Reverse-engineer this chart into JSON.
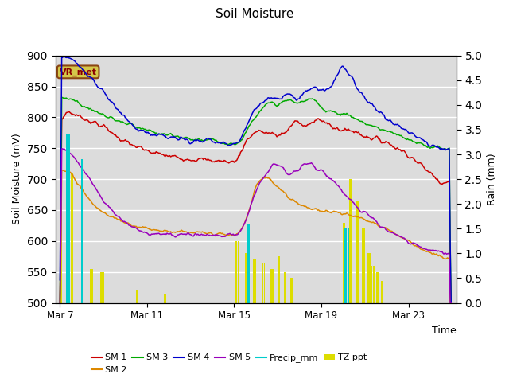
{
  "title": "Soil Moisture",
  "xlabel": "Time",
  "ylabel_left": "Soil Moisture (mV)",
  "ylabel_right": "Rain (mm)",
  "ylim_left": [
    500,
    900
  ],
  "ylim_right": [
    0.0,
    5.0
  ],
  "yticks_left": [
    500,
    550,
    600,
    650,
    700,
    750,
    800,
    850,
    900
  ],
  "yticks_right": [
    0.0,
    0.5,
    1.0,
    1.5,
    2.0,
    2.5,
    3.0,
    3.5,
    4.0,
    4.5,
    5.0
  ],
  "xtick_labels": [
    "Mar 7",
    "Mar 11",
    "Mar 15",
    "Mar 19",
    "Mar 23"
  ],
  "xtick_positions": [
    0,
    96,
    192,
    288,
    384
  ],
  "total_days": 18,
  "pts_per_day": 24,
  "bg_color": "#dcdcdc",
  "grid_color": "#ffffff",
  "colors": {
    "SM1": "#cc0000",
    "SM2": "#dd8800",
    "SM3": "#00aa00",
    "SM4": "#0000cc",
    "SM5": "#9900bb",
    "Precip_mm": "#00cccc",
    "TZ_ppt": "#dddd00"
  },
  "annotation_text": "VR_met",
  "legend_order": [
    "SM 1",
    "SM 2",
    "SM 3",
    "SM 4",
    "SM 5",
    "Precip_mm",
    "TZ ppt"
  ]
}
